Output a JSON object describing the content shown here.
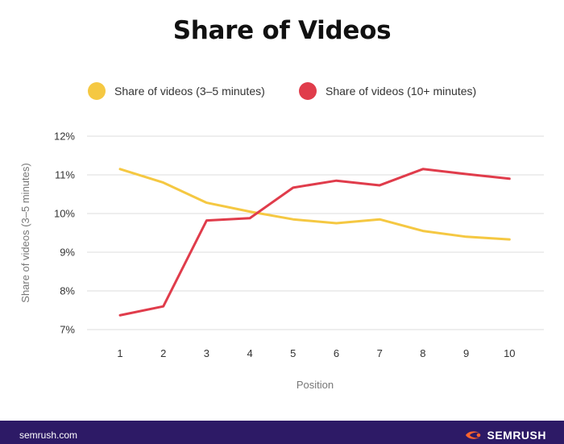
{
  "chart_data": {
    "type": "line",
    "title": "Share of Videos",
    "xlabel": "Position",
    "ylabel": "Share of videos (3–5 minutes)",
    "x": [
      1,
      2,
      3,
      4,
      5,
      6,
      7,
      8,
      9,
      10
    ],
    "ylim": [
      7,
      12
    ],
    "yticks": [
      "7%",
      "8%",
      "9%",
      "10%",
      "11%",
      "12%"
    ],
    "grid": true,
    "legend_position": "top",
    "series": [
      {
        "name": "Share of videos (3–5 minutes)",
        "color": "#f5c842",
        "values": [
          11.15,
          10.8,
          10.28,
          10.05,
          9.85,
          9.75,
          9.85,
          9.55,
          9.4,
          9.33
        ]
      },
      {
        "name": "Share of videos (10+ minutes)",
        "color": "#e03c4b",
        "values": [
          7.37,
          7.6,
          9.82,
          9.88,
          10.67,
          10.85,
          10.73,
          11.15,
          11.02,
          10.9
        ]
      }
    ]
  },
  "footer": {
    "site": "semrush.com",
    "brand": "SEMRUSH",
    "brand_icon": "semrush-flame-icon",
    "background": "#2d1a66",
    "brand_accent": "#ff642d"
  }
}
